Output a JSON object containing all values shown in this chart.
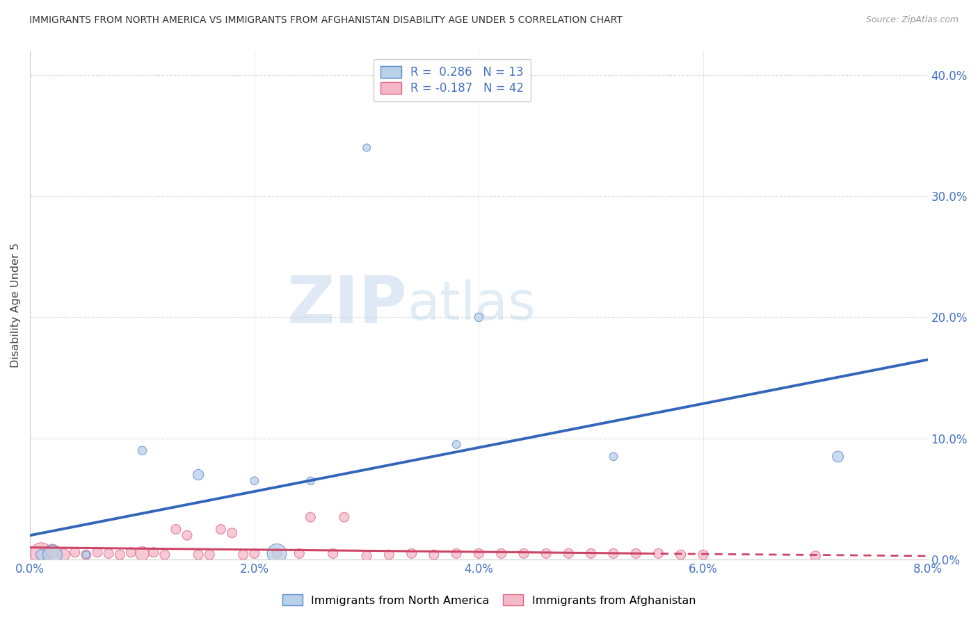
{
  "title": "IMMIGRANTS FROM NORTH AMERICA VS IMMIGRANTS FROM AFGHANISTAN DISABILITY AGE UNDER 5 CORRELATION CHART",
  "source": "Source: ZipAtlas.com",
  "ylabel": "Disability Age Under 5",
  "watermark_zip": "ZIP",
  "watermark_atlas": "atlas",
  "xlim": [
    0.0,
    0.08
  ],
  "ylim": [
    0.0,
    0.42
  ],
  "xticks": [
    0.0,
    0.02,
    0.04,
    0.06,
    0.08
  ],
  "yticks": [
    0.0,
    0.1,
    0.2,
    0.3,
    0.4
  ],
  "blue_R": "0.286",
  "blue_N": "13",
  "pink_R": "-0.187",
  "pink_N": "42",
  "blue_fill": "#b8d0e8",
  "pink_fill": "#f4b8c8",
  "blue_edge": "#5588cc",
  "pink_edge": "#e06080",
  "blue_line_color": "#3366bb",
  "pink_line_color": "#cc4466",
  "blue_scatter_x": [
    0.001,
    0.002,
    0.005,
    0.01,
    0.015,
    0.02,
    0.022,
    0.025,
    0.03,
    0.038,
    0.04,
    0.052,
    0.072
  ],
  "blue_scatter_y": [
    0.004,
    0.004,
    0.004,
    0.09,
    0.07,
    0.065,
    0.005,
    0.065,
    0.34,
    0.095,
    0.2,
    0.085,
    0.085
  ],
  "blue_scatter_size": [
    120,
    400,
    60,
    80,
    120,
    70,
    400,
    70,
    60,
    70,
    80,
    70,
    130
  ],
  "pink_scatter_x": [
    0.001,
    0.002,
    0.003,
    0.004,
    0.005,
    0.006,
    0.007,
    0.008,
    0.009,
    0.01,
    0.011,
    0.012,
    0.013,
    0.014,
    0.015,
    0.016,
    0.017,
    0.018,
    0.019,
    0.02,
    0.022,
    0.024,
    0.025,
    0.027,
    0.028,
    0.03,
    0.032,
    0.034,
    0.036,
    0.038,
    0.04,
    0.042,
    0.044,
    0.046,
    0.048,
    0.05,
    0.052,
    0.054,
    0.056,
    0.058,
    0.06,
    0.07
  ],
  "pink_scatter_y": [
    0.005,
    0.007,
    0.004,
    0.006,
    0.004,
    0.006,
    0.005,
    0.004,
    0.006,
    0.005,
    0.006,
    0.004,
    0.025,
    0.02,
    0.004,
    0.004,
    0.025,
    0.022,
    0.004,
    0.005,
    0.005,
    0.005,
    0.035,
    0.005,
    0.035,
    0.003,
    0.004,
    0.005,
    0.004,
    0.005,
    0.005,
    0.005,
    0.005,
    0.005,
    0.005,
    0.005,
    0.005,
    0.005,
    0.005,
    0.004,
    0.004,
    0.003
  ],
  "pink_scatter_size": [
    500,
    200,
    150,
    100,
    100,
    100,
    100,
    100,
    100,
    200,
    100,
    100,
    100,
    100,
    100,
    100,
    100,
    100,
    100,
    100,
    100,
    100,
    100,
    100,
    100,
    100,
    100,
    100,
    100,
    100,
    100,
    100,
    100,
    100,
    100,
    100,
    100,
    100,
    100,
    100,
    100,
    100
  ],
  "blue_trend_x0": 0.0,
  "blue_trend_y0": 0.02,
  "blue_trend_x1": 0.08,
  "blue_trend_y1": 0.165,
  "pink_trend_x0": 0.0,
  "pink_trend_y0": 0.01,
  "pink_trend_x1": 0.055,
  "pink_trend_y1": 0.005,
  "pink_trend_dash_x0": 0.055,
  "pink_trend_dash_y0": 0.005,
  "pink_trend_dash_x1": 0.08,
  "pink_trend_dash_y1": 0.003,
  "background_color": "#ffffff",
  "grid_color": "#d0d0d0",
  "axis_color": "#cccccc",
  "tick_color_x": "#4472c4",
  "tick_color_y": "#4472c4"
}
